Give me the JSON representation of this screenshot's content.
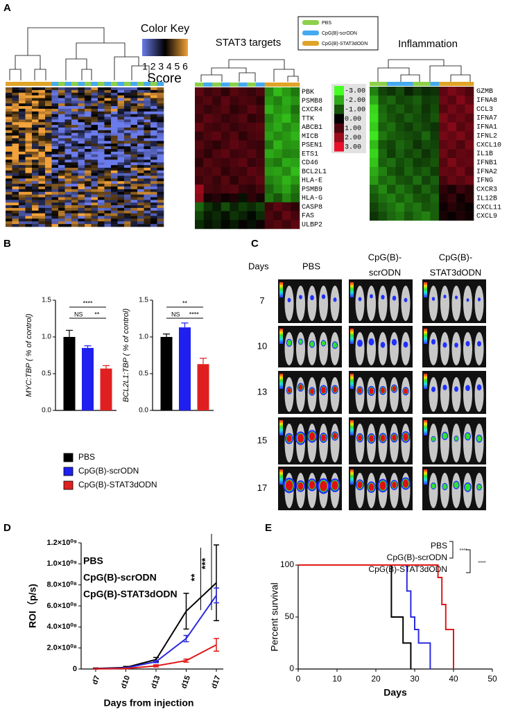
{
  "panel_labels": [
    "A",
    "B",
    "C",
    "D",
    "E"
  ],
  "heatmap_key": {
    "title": "Color Key",
    "label": "Score",
    "ticks": [
      1,
      2,
      3,
      4,
      5,
      6
    ],
    "colors": [
      "#6b7bea",
      "#000000",
      "#f2a23a"
    ]
  },
  "group_legend": {
    "items": [
      {
        "name": "PBS",
        "color": "#8dd04a"
      },
      {
        "name": "CpG(B)-scrODN",
        "color": "#45aaf0"
      },
      {
        "name": "CpG(B)-STAT3dODN",
        "color": "#e0a428"
      }
    ]
  },
  "heatmaps": [
    {
      "title": "STAT3 targets",
      "genes": [
        "PBK",
        "PSMB8",
        "CXCR4",
        "TTK",
        "ABCB1",
        "MICB",
        "PSEN1",
        "ETS1",
        "CD46",
        "BCL2L1",
        "HLA-E",
        "PSMB9",
        "HLA-G",
        "CASP8",
        "FAS",
        "ULBP2"
      ],
      "column_groups": [
        0,
        1,
        0,
        1,
        0,
        1,
        0,
        1,
        2,
        2,
        2,
        2
      ],
      "values": [
        [
          1.2,
          0.8,
          1.0,
          0.6,
          1.1,
          0.9,
          0.7,
          1.0,
          -1.6,
          -2.2,
          -1.8,
          -1.4
        ],
        [
          0.9,
          1.1,
          0.7,
          1.2,
          0.8,
          1.0,
          0.9,
          0.6,
          -1.8,
          -1.5,
          -2.0,
          -1.7
        ],
        [
          1.0,
          0.7,
          0.9,
          1.1,
          0.6,
          0.8,
          1.2,
          0.9,
          -2.1,
          -1.7,
          -1.9,
          -1.3
        ],
        [
          0.8,
          1.2,
          1.0,
          0.7,
          0.9,
          1.1,
          0.6,
          0.8,
          -1.5,
          -1.9,
          -2.2,
          -1.6
        ],
        [
          1.3,
          0.9,
          0.8,
          1.0,
          0.7,
          0.9,
          1.0,
          1.1,
          -1.7,
          -2.0,
          -1.6,
          -1.9
        ],
        [
          0.7,
          1.0,
          1.2,
          0.8,
          1.1,
          0.6,
          0.9,
          1.0,
          -1.9,
          -1.6,
          -1.8,
          -2.1
        ],
        [
          1.1,
          0.8,
          0.6,
          0.9,
          1.2,
          1.0,
          0.8,
          0.7,
          -1.4,
          -2.1,
          -1.7,
          -1.8
        ],
        [
          0.9,
          0.6,
          1.0,
          1.2,
          0.8,
          0.9,
          1.1,
          0.8,
          -2.0,
          -1.8,
          -1.5,
          -1.6
        ],
        [
          0.6,
          1.1,
          0.9,
          0.8,
          1.0,
          1.2,
          0.7,
          0.9,
          -1.6,
          -1.4,
          -2.0,
          -1.9
        ],
        [
          1.0,
          0.9,
          1.1,
          0.6,
          0.9,
          0.8,
          1.2,
          1.0,
          -1.8,
          -1.9,
          -1.6,
          -2.2
        ],
        [
          0.8,
          1.0,
          0.7,
          1.1,
          0.6,
          1.0,
          0.9,
          1.2,
          -1.5,
          -1.7,
          -2.1,
          -1.8
        ],
        [
          2.0,
          0.9,
          0.8,
          1.0,
          1.1,
          0.7,
          0.6,
          0.9,
          -1.2,
          -1.6,
          -1.9,
          -1.4
        ],
        [
          1.8,
          0.3,
          0.5,
          0.2,
          0.4,
          -0.2,
          0.6,
          0.3,
          -1.4,
          -1.0,
          -1.6,
          -1.2
        ],
        [
          -1.2,
          -0.6,
          -0.3,
          -0.9,
          -0.4,
          -0.7,
          -0.5,
          -0.8,
          0.8,
          1.2,
          0.9,
          0.6
        ],
        [
          -0.8,
          -0.3,
          -0.5,
          -0.2,
          -0.6,
          -0.4,
          -0.1,
          -0.5,
          1.0,
          0.7,
          1.3,
          0.9
        ],
        [
          -0.5,
          -0.2,
          -0.4,
          -0.1,
          -0.3,
          0.1,
          -0.2,
          0.2,
          0.9,
          1.1,
          0.8,
          1.2
        ]
      ]
    },
    {
      "title": "Inflammation",
      "genes": [
        "GZMB",
        "IFNA8",
        "CCL3",
        "IFNA7",
        "IFNA1",
        "IFNL2",
        "CXCL10",
        "IL1B",
        "IFNB1",
        "IFNA2",
        "IFNG",
        "CXCR3",
        "IL12B",
        "CXCL11",
        "CXCL9"
      ],
      "column_groups": [
        0,
        0,
        1,
        1,
        1,
        0,
        0,
        1,
        2,
        2,
        2,
        2
      ],
      "values": [
        [
          -1.5,
          -0.8,
          -0.6,
          -0.9,
          -0.4,
          -0.7,
          -0.5,
          -0.6,
          1.2,
          1.6,
          1.3,
          1.0
        ],
        [
          -2.0,
          -1.0,
          -1.2,
          -0.8,
          -0.9,
          -1.1,
          -0.7,
          -0.8,
          1.4,
          1.1,
          1.7,
          1.2
        ],
        [
          -2.5,
          -1.2,
          -0.9,
          -1.1,
          -0.8,
          -1.0,
          -0.6,
          -0.9,
          1.1,
          1.5,
          1.2,
          1.6
        ],
        [
          -2.6,
          -1.3,
          -1.0,
          -0.8,
          -1.1,
          -0.9,
          -0.7,
          -1.0,
          1.6,
          1.2,
          1.4,
          1.1
        ],
        [
          -2.4,
          -1.1,
          -1.3,
          -0.9,
          -0.7,
          -1.0,
          -0.8,
          -0.6,
          1.3,
          1.7,
          1.1,
          1.4
        ],
        [
          -2.7,
          -1.4,
          -1.1,
          -1.0,
          -0.9,
          -0.8,
          -1.2,
          -0.7,
          1.5,
          1.3,
          1.6,
          1.2
        ],
        [
          -2.2,
          -1.0,
          -0.8,
          -1.2,
          -1.0,
          -0.6,
          -0.9,
          -0.8,
          1.2,
          1.4,
          1.0,
          1.5
        ],
        [
          -2.5,
          -1.2,
          -0.7,
          -1.1,
          -0.8,
          -1.0,
          -0.6,
          -0.9,
          1.4,
          1.0,
          1.3,
          1.2
        ],
        [
          -2.3,
          -1.1,
          -1.3,
          -0.9,
          -1.1,
          -0.7,
          -0.8,
          -1.0,
          1.1,
          1.6,
          1.2,
          1.3
        ],
        [
          -2.0,
          -1.5,
          -1.0,
          -0.8,
          -1.2,
          -0.9,
          -1.1,
          -0.7,
          1.3,
          1.2,
          1.5,
          1.0
        ],
        [
          -1.8,
          -1.2,
          -1.4,
          -1.0,
          -0.9,
          -1.3,
          -0.8,
          -1.1,
          0.9,
          1.3,
          1.1,
          1.4
        ],
        [
          -1.2,
          -1.6,
          -1.0,
          -1.4,
          -1.1,
          -0.8,
          -1.2,
          -0.9,
          0.6,
          0.3,
          0.8,
          0.5
        ],
        [
          -1.0,
          -1.3,
          -1.5,
          -1.1,
          -1.4,
          -1.0,
          -0.9,
          -1.2,
          0.4,
          0.7,
          0.2,
          0.6
        ],
        [
          -0.8,
          -1.1,
          -1.3,
          -1.6,
          -1.2,
          -1.4,
          -1.0,
          -1.1,
          0.2,
          0.5,
          0.3,
          0.1
        ],
        [
          -0.6,
          -0.9,
          -1.2,
          -1.4,
          -1.0,
          -1.3,
          -1.5,
          -1.1,
          0.3,
          0.1,
          0.4,
          0.2
        ]
      ]
    }
  ],
  "heatmap_scale": {
    "ticks": [
      {
        "value": -3,
        "label": "-3.00"
      },
      {
        "value": -2,
        "label": "-2.00"
      },
      {
        "value": -1,
        "label": "-1.00"
      },
      {
        "value": 0,
        "label": "0.00"
      },
      {
        "value": 1,
        "label": "1.00"
      },
      {
        "value": 2,
        "label": "2.00"
      },
      {
        "value": 3,
        "label": "3.00"
      }
    ],
    "colors": [
      "#44ff22",
      "#000000",
      "#e8102a"
    ]
  },
  "imaging": {
    "header": "Days",
    "groups": [
      {
        "label": [
          "PBS"
        ],
        "color": "#000000"
      },
      {
        "label": [
          "CpG(B)-",
          "scrODN"
        ],
        "color": "#2a2adf"
      },
      {
        "label": [
          "CpG(B)-",
          "STAT3dODN"
        ],
        "color": "#e01818"
      }
    ],
    "days": [
      7,
      10,
      13,
      15,
      17
    ]
  },
  "chart_data": [
    {
      "type": "bar",
      "ylabel": "MYC:TBP ( % of control)",
      "ylim": [
        0,
        1.5
      ],
      "yticks": [
        {
          "value": 0,
          "label": "0.0"
        },
        0.5,
        {
          "value": 1,
          "label": "1.0"
        },
        1.5
      ],
      "values": [
        1.0,
        0.85,
        0.57
      ],
      "errors": [
        0.09,
        0.03,
        0.04
      ],
      "colors": [
        "#000000",
        "#1f1ff0",
        "#e02020"
      ],
      "legend_labels": [
        "PBS",
        "CpG(B)-scrODN",
        "CpG(B)-STAT3dODN"
      ],
      "annotations": [
        {
          "text": "****",
          "between": [
            0,
            2
          ]
        },
        {
          "text": "NS",
          "between": [
            0,
            1
          ]
        },
        {
          "text": "**",
          "between": [
            1,
            2
          ]
        }
      ]
    },
    {
      "type": "bar",
      "ylabel": "BCL2L1:TBP ( % of control)",
      "ylim": [
        0,
        1.5
      ],
      "yticks": [
        {
          "value": 0,
          "label": "0.0"
        },
        0.5,
        {
          "value": 1,
          "label": "1.0"
        },
        1.5
      ],
      "values": [
        1.0,
        1.13,
        0.63
      ],
      "errors": [
        0.04,
        0.06,
        0.08
      ],
      "colors": [
        "#000000",
        "#1f1ff0",
        "#e02020"
      ],
      "annotations": [
        {
          "text": "**",
          "between": [
            0,
            2
          ]
        },
        {
          "text": "NS",
          "between": [
            0,
            1
          ]
        },
        {
          "text": "****",
          "between": [
            1,
            2
          ]
        }
      ]
    },
    {
      "type": "line",
      "xlabel": "Days from injection",
      "ylabel": "ROI（p/s)",
      "categories": [
        "d7",
        "d10",
        "d13",
        "d15",
        "d17"
      ],
      "ylim": [
        0,
        1200000000
      ],
      "yticks": [
        0,
        {
          "value": 200000000,
          "label": "2.0×10⁰⁸"
        },
        {
          "value": 400000000,
          "label": "4.0×10⁰⁸"
        },
        {
          "value": 600000000,
          "label": "6.0×10⁰⁸"
        },
        {
          "value": 800000000,
          "label": "8.0×10⁰⁸"
        },
        {
          "value": 1000000000,
          "label": "1.0×10⁰⁹"
        },
        {
          "value": 1200000000,
          "label": "1.2×10⁰⁹"
        }
      ],
      "series": [
        {
          "name": "PBS",
          "color": "#000000",
          "values": [
            5000000,
            15000000,
            90000000,
            550000000,
            820000000
          ],
          "errors": [
            5000000,
            10000000,
            20000000,
            170000000,
            360000000
          ]
        },
        {
          "name": "CpG(B)-scrODN",
          "color": "#2a2adf",
          "values": [
            3000000,
            10000000,
            70000000,
            290000000,
            700000000
          ],
          "errors": [
            3000000,
            5000000,
            10000000,
            30000000,
            70000000
          ]
        },
        {
          "name": "CpG(B)-STAT3dODN",
          "color": "#e01818",
          "values": [
            2000000,
            5000000,
            30000000,
            80000000,
            230000000
          ],
          "errors": [
            3000000,
            3000000,
            10000000,
            15000000,
            60000000
          ]
        }
      ],
      "annotations": [
        {
          "text": "**",
          "category": 3
        },
        {
          "text": "***",
          "category": 4
        }
      ]
    },
    {
      "type": "survival",
      "xlabel": "Days",
      "ylabel": "Percent survival",
      "xlim": [
        0,
        50
      ],
      "xticks": [
        0,
        10,
        20,
        30,
        40,
        50
      ],
      "ylim": [
        0,
        100
      ],
      "yticks": [
        0,
        50,
        100
      ],
      "series": [
        {
          "name": "PBS",
          "color": "#000000",
          "x": [
            0,
            24,
            24,
            27,
            27,
            29,
            29
          ],
          "values": [
            100,
            100,
            50,
            50,
            25,
            25,
            0
          ]
        },
        {
          "name": "CpG(B)-scrODN",
          "color": "#2a2adf",
          "x": [
            0,
            28,
            28,
            29,
            29,
            30,
            30,
            31,
            31,
            34,
            34
          ],
          "values": [
            100,
            100,
            75,
            75,
            50,
            50,
            38,
            38,
            25,
            25,
            0
          ]
        },
        {
          "name": "CpG(B)-STAT3dODN",
          "color": "#e01818",
          "x": [
            0,
            36,
            36,
            37,
            37,
            38,
            38,
            40,
            40
          ],
          "values": [
            100,
            100,
            88,
            88,
            62,
            62,
            38,
            38,
            0
          ]
        }
      ],
      "annotations": [
        {
          "text": "****"
        },
        {
          "text": "****"
        }
      ]
    }
  ]
}
